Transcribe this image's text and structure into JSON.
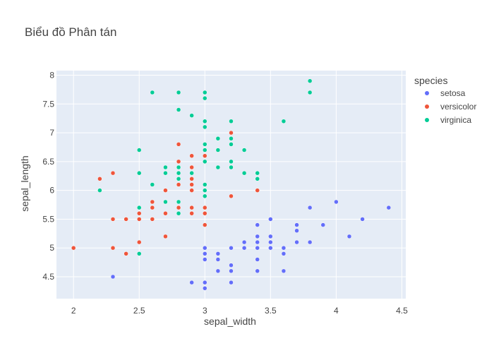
{
  "chart_data": {
    "type": "scatter",
    "title": "Biểu đồ Phân tán",
    "xlabel": "sepal_width",
    "ylabel": "sepal_length",
    "xlim": [
      1.87,
      4.53
    ],
    "ylim": [
      4.12,
      8.08
    ],
    "xticks": [
      2,
      2.5,
      3,
      3.5,
      4,
      4.5
    ],
    "xtick_labels": [
      "2",
      "2.5",
      "3",
      "3.5",
      "4",
      "4.5"
    ],
    "yticks": [
      4.5,
      5,
      5.5,
      6,
      6.5,
      7,
      7.5,
      8
    ],
    "ytick_labels": [
      "4.5",
      "5",
      "5.5",
      "6",
      "6.5",
      "7",
      "7.5",
      "8"
    ],
    "grid": true,
    "legend_title": "species",
    "legend_position": "top-right",
    "series": [
      {
        "name": "setosa",
        "color": "#636efa",
        "points": [
          [
            3.5,
            5.1
          ],
          [
            3.0,
            4.9
          ],
          [
            3.2,
            4.7
          ],
          [
            3.1,
            4.6
          ],
          [
            3.6,
            5.0
          ],
          [
            3.9,
            5.4
          ],
          [
            3.4,
            4.6
          ],
          [
            3.4,
            5.0
          ],
          [
            2.9,
            4.4
          ],
          [
            3.1,
            4.9
          ],
          [
            3.7,
            5.4
          ],
          [
            3.4,
            4.8
          ],
          [
            3.0,
            4.8
          ],
          [
            3.0,
            4.3
          ],
          [
            4.0,
            5.8
          ],
          [
            4.4,
            5.7
          ],
          [
            3.9,
            5.4
          ],
          [
            3.5,
            5.1
          ],
          [
            3.8,
            5.7
          ],
          [
            3.8,
            5.1
          ],
          [
            3.4,
            5.4
          ],
          [
            3.7,
            5.1
          ],
          [
            3.6,
            4.6
          ],
          [
            3.3,
            5.1
          ],
          [
            3.4,
            4.8
          ],
          [
            3.0,
            5.0
          ],
          [
            3.4,
            5.0
          ],
          [
            3.5,
            5.2
          ],
          [
            3.4,
            5.2
          ],
          [
            3.2,
            4.7
          ],
          [
            3.1,
            4.8
          ],
          [
            3.4,
            5.4
          ],
          [
            4.1,
            5.2
          ],
          [
            4.2,
            5.5
          ],
          [
            3.1,
            4.9
          ],
          [
            3.2,
            5.0
          ],
          [
            3.5,
            5.5
          ],
          [
            3.6,
            4.9
          ],
          [
            3.0,
            4.4
          ],
          [
            3.4,
            5.1
          ],
          [
            3.5,
            5.0
          ],
          [
            2.3,
            4.5
          ],
          [
            3.2,
            4.4
          ],
          [
            3.5,
            5.0
          ],
          [
            3.8,
            5.1
          ],
          [
            3.0,
            4.8
          ],
          [
            3.8,
            5.1
          ],
          [
            3.2,
            4.6
          ],
          [
            3.7,
            5.3
          ],
          [
            3.3,
            5.0
          ]
        ]
      },
      {
        "name": "versicolor",
        "color": "#EF553B",
        "points": [
          [
            3.2,
            7.0
          ],
          [
            3.2,
            6.4
          ],
          [
            3.1,
            6.9
          ],
          [
            2.3,
            5.5
          ],
          [
            2.8,
            6.5
          ],
          [
            2.8,
            5.7
          ],
          [
            3.3,
            6.3
          ],
          [
            2.4,
            4.9
          ],
          [
            2.9,
            6.6
          ],
          [
            2.7,
            5.2
          ],
          [
            2.0,
            5.0
          ],
          [
            3.0,
            5.9
          ],
          [
            2.2,
            6.0
          ],
          [
            2.9,
            6.1
          ],
          [
            2.9,
            5.6
          ],
          [
            3.1,
            6.7
          ],
          [
            3.0,
            5.6
          ],
          [
            2.7,
            5.8
          ],
          [
            2.2,
            6.2
          ],
          [
            2.5,
            5.6
          ],
          [
            3.2,
            5.9
          ],
          [
            2.8,
            6.1
          ],
          [
            2.5,
            6.3
          ],
          [
            2.8,
            6.1
          ],
          [
            2.9,
            6.4
          ],
          [
            3.0,
            6.6
          ],
          [
            2.8,
            6.8
          ],
          [
            3.0,
            6.7
          ],
          [
            2.9,
            6.0
          ],
          [
            2.6,
            5.7
          ],
          [
            2.4,
            5.5
          ],
          [
            2.4,
            5.5
          ],
          [
            2.7,
            5.8
          ],
          [
            2.7,
            6.0
          ],
          [
            3.0,
            5.4
          ],
          [
            3.4,
            6.0
          ],
          [
            3.1,
            6.7
          ],
          [
            2.3,
            6.3
          ],
          [
            3.0,
            5.6
          ],
          [
            2.5,
            5.5
          ],
          [
            2.6,
            5.5
          ],
          [
            3.0,
            6.1
          ],
          [
            2.6,
            5.8
          ],
          [
            2.3,
            5.0
          ],
          [
            2.7,
            5.6
          ],
          [
            3.0,
            5.7
          ],
          [
            2.9,
            5.7
          ],
          [
            2.9,
            6.2
          ],
          [
            2.5,
            5.1
          ],
          [
            2.8,
            5.7
          ]
        ]
      },
      {
        "name": "virginica",
        "color": "#00cc96",
        "points": [
          [
            3.3,
            6.3
          ],
          [
            2.7,
            5.8
          ],
          [
            3.0,
            7.1
          ],
          [
            2.9,
            6.3
          ],
          [
            3.0,
            6.5
          ],
          [
            3.0,
            7.6
          ],
          [
            2.5,
            4.9
          ],
          [
            2.9,
            7.3
          ],
          [
            2.5,
            6.7
          ],
          [
            3.6,
            7.2
          ],
          [
            3.2,
            6.5
          ],
          [
            2.7,
            6.4
          ],
          [
            3.0,
            6.8
          ],
          [
            2.5,
            5.7
          ],
          [
            2.8,
            5.8
          ],
          [
            3.2,
            6.4
          ],
          [
            3.0,
            6.5
          ],
          [
            3.8,
            7.7
          ],
          [
            2.6,
            7.7
          ],
          [
            2.2,
            6.0
          ],
          [
            3.2,
            6.9
          ],
          [
            2.8,
            5.6
          ],
          [
            2.8,
            7.7
          ],
          [
            2.7,
            6.3
          ],
          [
            3.3,
            6.7
          ],
          [
            3.2,
            7.2
          ],
          [
            2.8,
            6.2
          ],
          [
            3.0,
            6.1
          ],
          [
            2.8,
            6.4
          ],
          [
            3.0,
            7.2
          ],
          [
            2.8,
            7.4
          ],
          [
            3.8,
            7.9
          ],
          [
            2.8,
            6.4
          ],
          [
            2.8,
            6.3
          ],
          [
            2.6,
            6.1
          ],
          [
            3.0,
            7.7
          ],
          [
            3.4,
            6.3
          ],
          [
            3.1,
            6.4
          ],
          [
            3.0,
            6.0
          ],
          [
            3.1,
            6.9
          ],
          [
            3.1,
            6.7
          ],
          [
            3.1,
            6.9
          ],
          [
            2.7,
            5.8
          ],
          [
            3.2,
            6.8
          ],
          [
            3.3,
            6.7
          ],
          [
            3.0,
            6.7
          ],
          [
            2.5,
            6.3
          ],
          [
            3.0,
            6.5
          ],
          [
            3.4,
            6.2
          ],
          [
            3.0,
            5.9
          ]
        ]
      }
    ]
  }
}
